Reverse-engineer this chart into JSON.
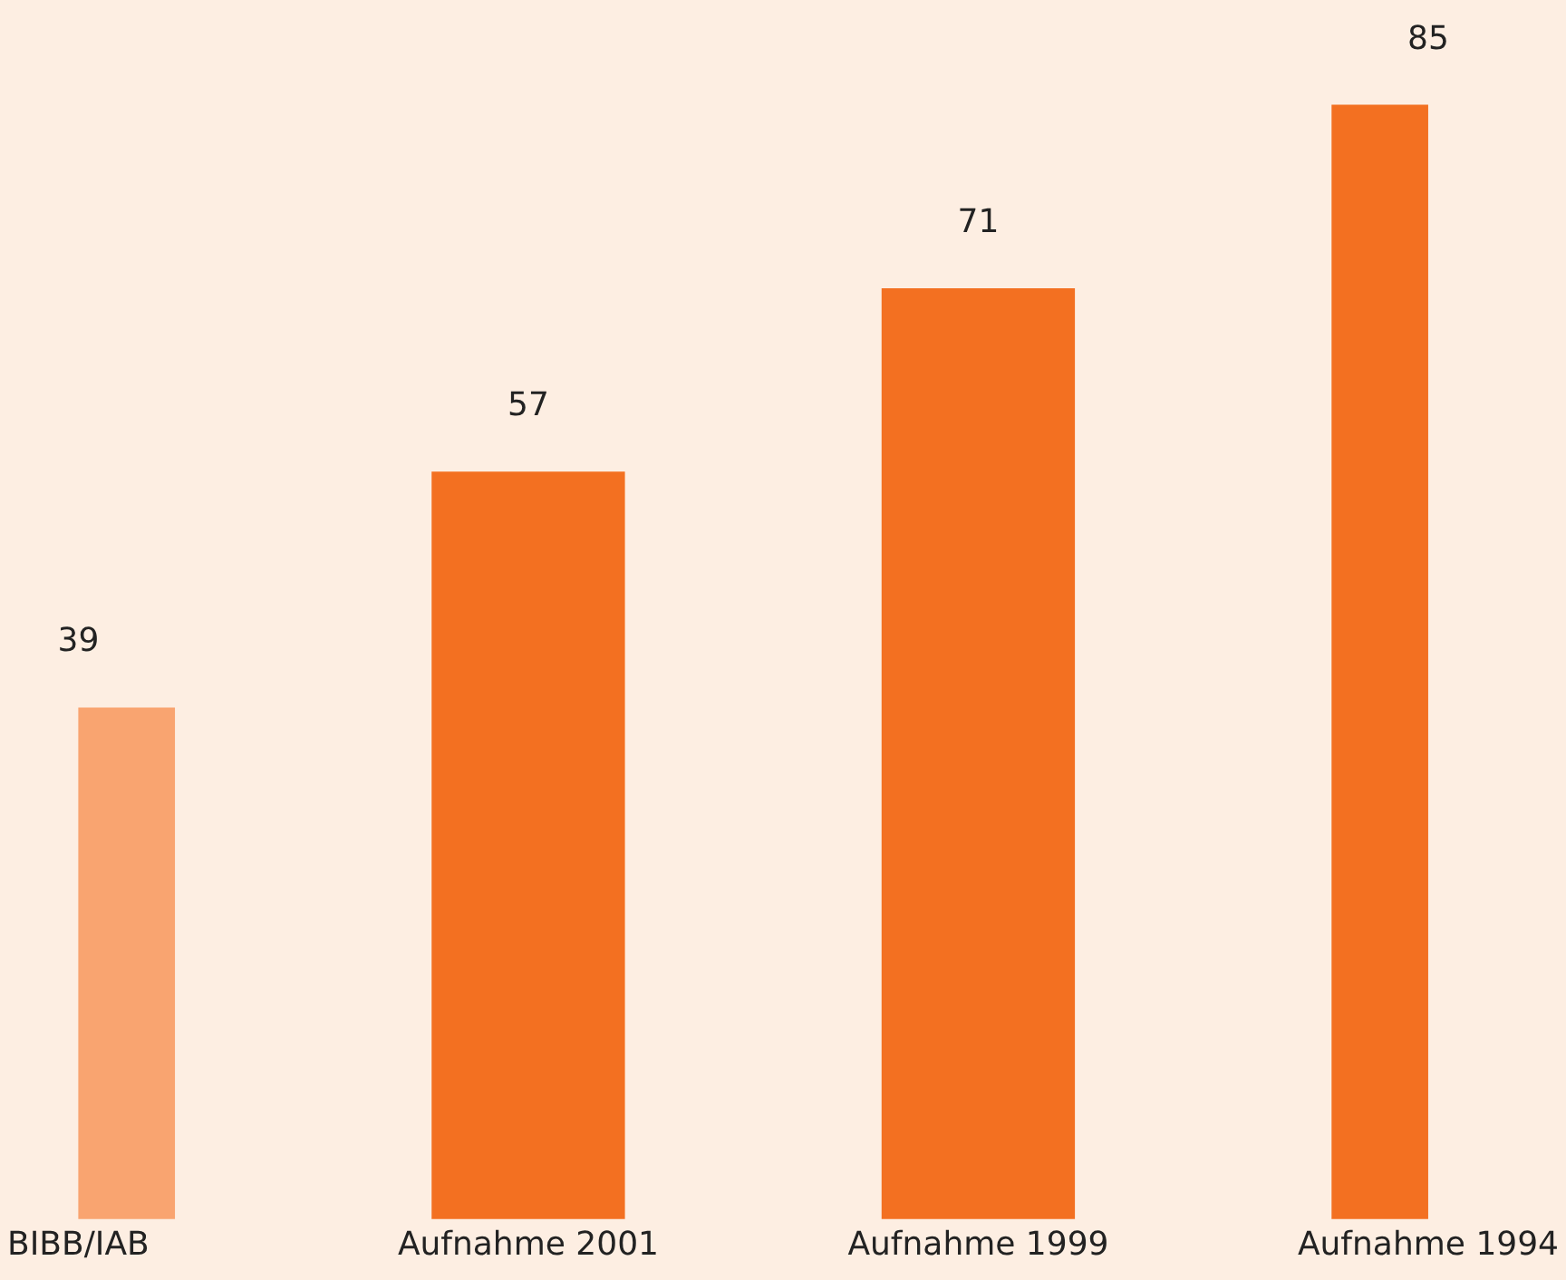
{
  "chart_data": {
    "type": "bar",
    "categories": [
      "BIBB/IAB",
      "Aufnahme 2001",
      "Aufnahme 1999",
      "Aufnahme 1994"
    ],
    "values": [
      39,
      57,
      71,
      85
    ],
    "colors": [
      "#f9a470",
      "#f37021",
      "#f37021",
      "#f37021"
    ],
    "data_labels": true,
    "grid": false,
    "legend": false,
    "tick_labels": "x"
  }
}
